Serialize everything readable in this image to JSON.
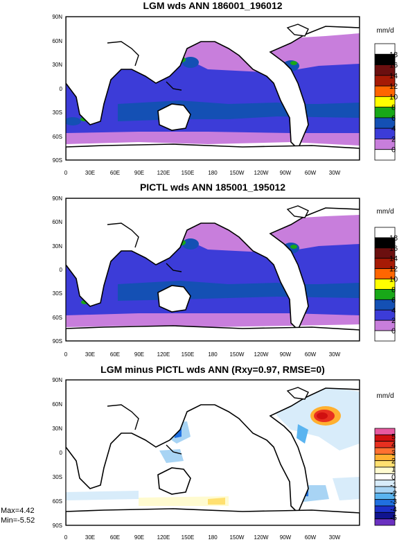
{
  "chart_data": [
    {
      "type": "heatmap",
      "title": "LGM wds ANN 186001_196012",
      "units": "mm/d",
      "lat_ticks": [
        "90N",
        "60N",
        "30N",
        "0",
        "30S",
        "60S",
        "90S"
      ],
      "lon_ticks": [
        "0",
        "30E",
        "60E",
        "90E",
        "120E",
        "150E",
        "180",
        "150W",
        "120W",
        "90W",
        "60W",
        "30W"
      ],
      "colorbar_levels": [
        "18",
        "16",
        "14",
        "12",
        "10",
        "8",
        "6",
        "4",
        "2",
        "0"
      ],
      "colorbar_colors": [
        "#ffffff",
        "#000000",
        "#6b0f0f",
        "#a61a05",
        "#ff6600",
        "#ffff00",
        "#18a818",
        "#1450b4",
        "#3c3cd8",
        "#c87edc",
        "#ffffff"
      ]
    },
    {
      "type": "heatmap",
      "title": "PICTL wds ANN 185001_195012",
      "units": "mm/d",
      "lat_ticks": [
        "90N",
        "60N",
        "30N",
        "0",
        "30S",
        "60S",
        "90S"
      ],
      "lon_ticks": [
        "0",
        "30E",
        "60E",
        "90E",
        "120E",
        "150E",
        "180",
        "150W",
        "120W",
        "90W",
        "60W",
        "30W"
      ],
      "colorbar_levels": [
        "18",
        "16",
        "14",
        "12",
        "10",
        "8",
        "6",
        "4",
        "2",
        "0"
      ],
      "colorbar_colors": [
        "#ffffff",
        "#000000",
        "#6b0f0f",
        "#a61a05",
        "#ff6600",
        "#ffff00",
        "#18a818",
        "#1450b4",
        "#3c3cd8",
        "#c87edc",
        "#ffffff"
      ]
    },
    {
      "type": "heatmap",
      "title": "LGM minus PICTL wds ANN (Rxy=0.97, RMSE=0)",
      "units": "mm/d",
      "lat_ticks": [
        "90N",
        "60N",
        "30N",
        "0",
        "30S",
        "60S",
        "90S"
      ],
      "lon_ticks": [
        "0",
        "30E",
        "60E",
        "90E",
        "120E",
        "150E",
        "180",
        "150W",
        "120W",
        "90W",
        "60W",
        "30W"
      ],
      "colorbar_levels": [
        "5",
        "4",
        "3",
        "2",
        "1",
        "0",
        "-1",
        "-2",
        "-3",
        "-4",
        "-5"
      ],
      "colorbar_colors": [
        "#e85aa0",
        "#d01010",
        "#e83020",
        "#ff7030",
        "#ffb030",
        "#ffe070",
        "#fffbd0",
        "#ffffff",
        "#d8ecfa",
        "#a8d4f4",
        "#5ab4f0",
        "#2070e0",
        "#1c30c8",
        "#101490",
        "#6a30c0"
      ],
      "max_label": "Max=4.42",
      "min_label": "Min=-5.52"
    }
  ]
}
